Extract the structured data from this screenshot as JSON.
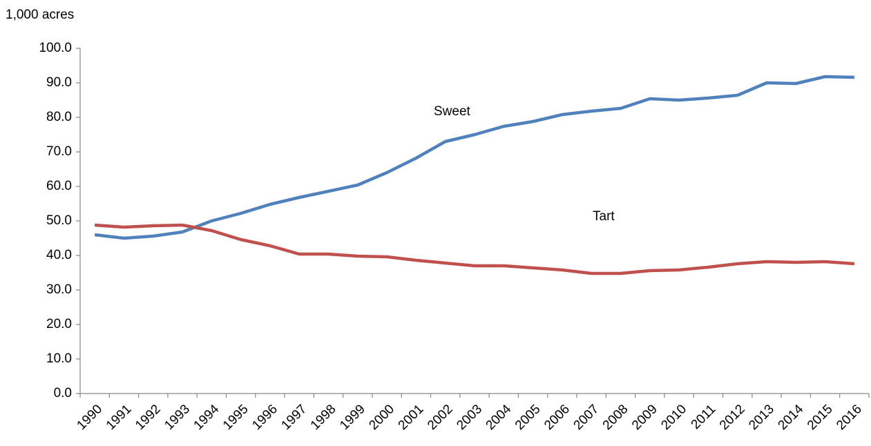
{
  "chart_data": {
    "type": "line",
    "y_axis_label": "1,000 acres",
    "categories": [
      "1990",
      "1991",
      "1992",
      "1993",
      "1994",
      "1995",
      "1996",
      "1997",
      "1998",
      "1999",
      "2000",
      "2001",
      "2002",
      "2003",
      "2004",
      "2005",
      "2006",
      "2007",
      "2008",
      "2009",
      "2010",
      "2011",
      "2012",
      "2013",
      "2014",
      "2015",
      "2016"
    ],
    "series": [
      {
        "name": "Sweet",
        "color": "#4f81bd",
        "values": [
          46.0,
          45.0,
          45.6,
          46.8,
          50.0,
          52.2,
          54.8,
          56.8,
          58.6,
          60.4,
          64.0,
          68.2,
          73.0,
          75.0,
          77.4,
          78.8,
          80.8,
          81.8,
          82.6,
          85.4,
          85.0,
          85.6,
          86.4,
          90.0,
          89.8,
          91.8,
          91.6
        ]
      },
      {
        "name": "Tart",
        "color": "#c0504d",
        "values": [
          48.8,
          48.2,
          48.6,
          48.8,
          47.2,
          44.6,
          42.8,
          40.4,
          40.4,
          39.8,
          39.6,
          38.6,
          37.8,
          37.0,
          37.0,
          36.4,
          35.8,
          34.8,
          34.8,
          35.6,
          35.8,
          36.6,
          37.6,
          38.2,
          38.0,
          38.2,
          37.6
        ]
      }
    ],
    "ylim": [
      0,
      100
    ],
    "yticks": [
      {
        "value": 0,
        "label": "0.0"
      },
      {
        "value": 10,
        "label": "10.0"
      },
      {
        "value": 20,
        "label": "20.0"
      },
      {
        "value": 30,
        "label": "30.0"
      },
      {
        "value": 40,
        "label": "40.0"
      },
      {
        "value": 50,
        "label": "50.0"
      },
      {
        "value": 60,
        "label": "60.0"
      },
      {
        "value": 70,
        "label": "70.0"
      },
      {
        "value": 80,
        "label": "80.0"
      },
      {
        "value": 90,
        "label": "90.0"
      },
      {
        "value": 100,
        "label": "100.0"
      }
    ],
    "grid": false
  }
}
